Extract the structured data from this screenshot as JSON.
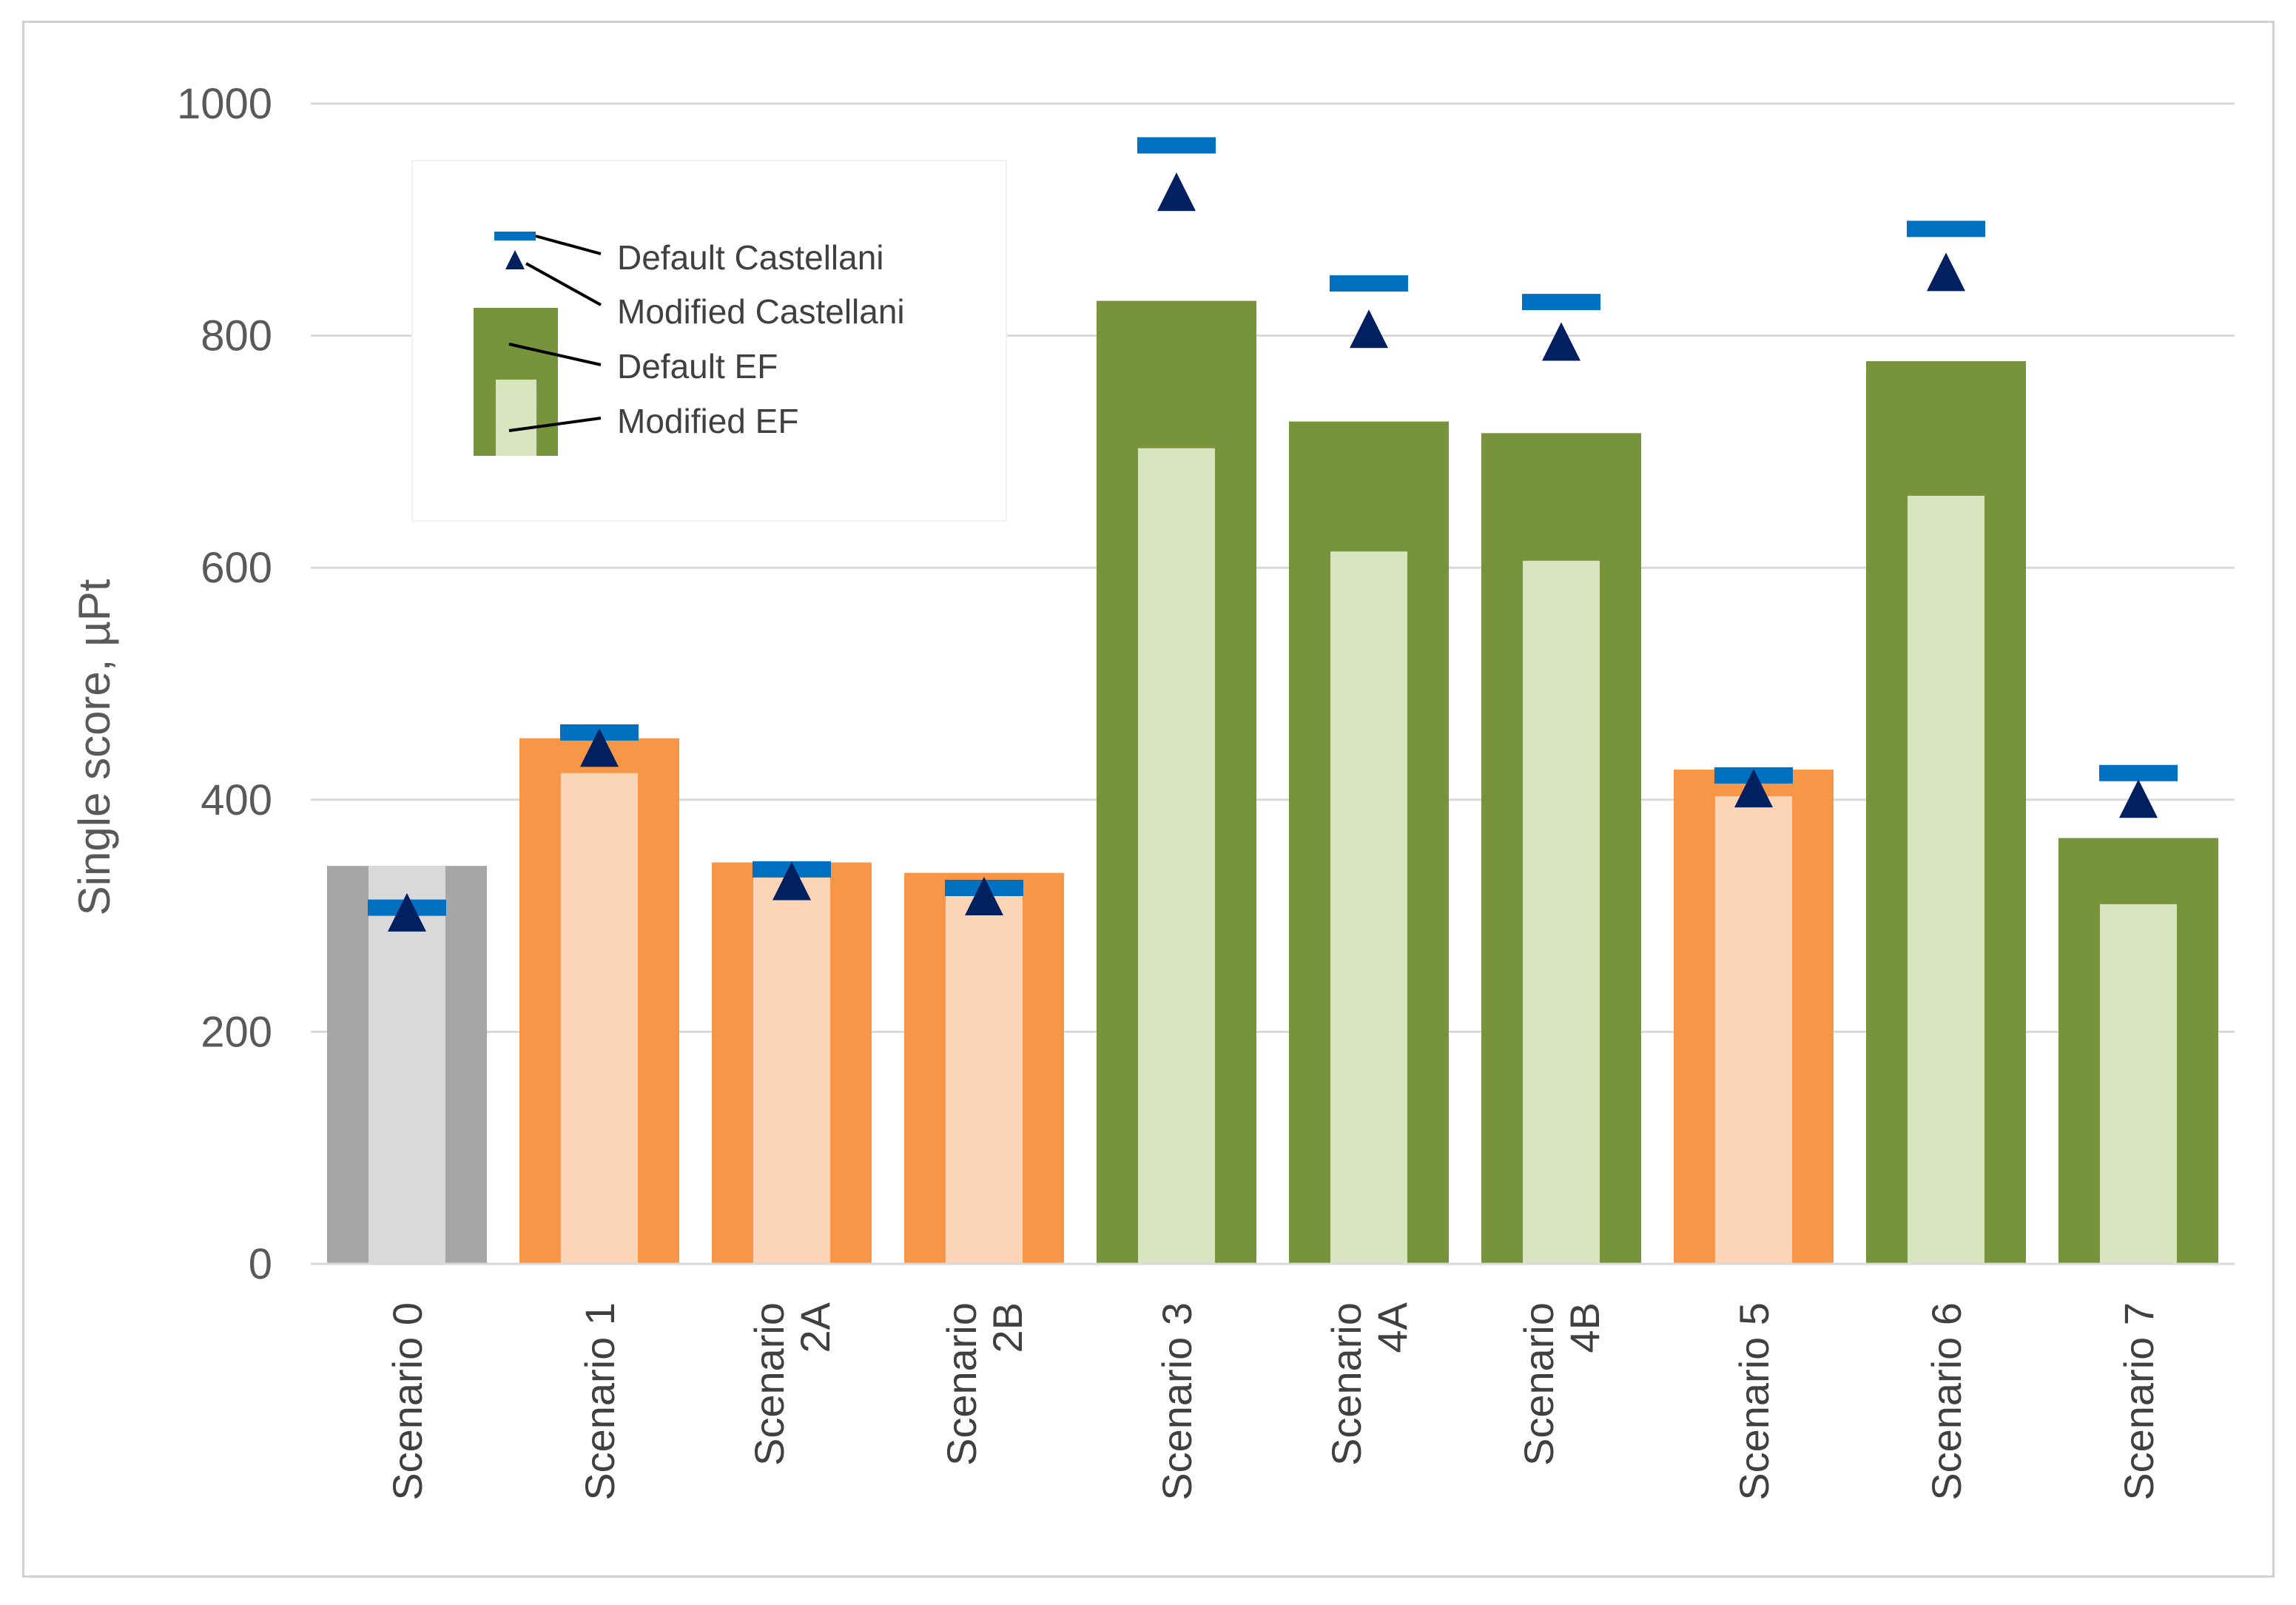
{
  "chart_data": {
    "type": "bar",
    "title": "",
    "xlabel": "",
    "ylabel": "Single score, µPt",
    "ylim": [
      0,
      1000
    ],
    "yticks": [
      0,
      200,
      400,
      600,
      800,
      1000
    ],
    "grid": true,
    "categories": [
      [
        "Scenario 0"
      ],
      [
        "Scenario 1"
      ],
      [
        "Scenario",
        "2A"
      ],
      [
        "Scenario",
        "2B"
      ],
      [
        "Scenario 3"
      ],
      [
        "Scenario",
        "4A"
      ],
      [
        "Scenario",
        "4B"
      ],
      [
        "Scenario 5"
      ],
      [
        "Scenario 6"
      ],
      [
        "Scenario 7"
      ]
    ],
    "group_colors": [
      "grey",
      "orange",
      "orange",
      "orange",
      "green",
      "green",
      "green",
      "orange",
      "green",
      "green"
    ],
    "palette": {
      "grey": {
        "dark": "#a6a6a6",
        "light": "#d9d9d9"
      },
      "orange": {
        "dark": "#f79646",
        "light": "#fbd5b5"
      },
      "green": {
        "dark": "#77933c",
        "light": "#d7e4bd"
      },
      "castellani_default": "#0070c0",
      "castellani_modified": "#002060",
      "grid": "#d9d9d9"
    },
    "series": [
      {
        "name": "Default EF",
        "kind": "bar-wide",
        "values": [
          343,
          453,
          346,
          337,
          830,
          726,
          716,
          426,
          778,
          367
        ]
      },
      {
        "name": "Modified EF",
        "kind": "bar-narrow",
        "values": [
          343,
          423,
          334,
          324,
          703,
          614,
          606,
          403,
          662,
          310
        ]
      },
      {
        "name": "Default Castellani",
        "kind": "dash-marker",
        "values": [
          307,
          458,
          340,
          324,
          964,
          845,
          829,
          421,
          892,
          423
        ]
      },
      {
        "name": "Modified Castellani",
        "kind": "triangle-marker",
        "values": [
          303,
          445,
          330,
          317,
          924,
          806,
          795,
          410,
          855,
          401
        ]
      }
    ],
    "legend": {
      "position": "top-left",
      "entries": [
        "Default Castellani",
        "Modified Castellani",
        "Default EF",
        "Modified EF"
      ]
    }
  }
}
